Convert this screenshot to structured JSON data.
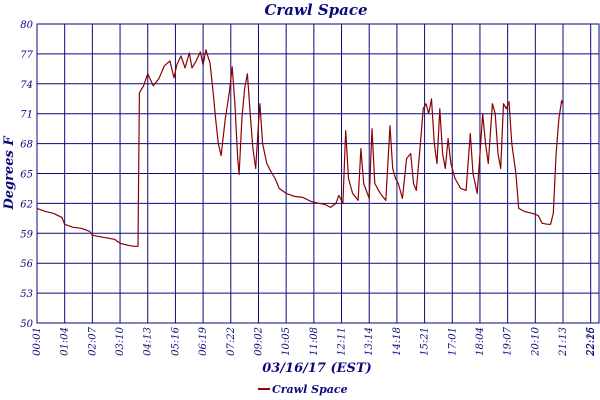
{
  "chart_data": {
    "type": "line",
    "title": "Crawl Space",
    "xlabel": "03/16/17 (EST)",
    "ylabel": "Degrees F",
    "ylim": [
      50,
      80
    ],
    "yticks": [
      "50",
      "53",
      "56",
      "59",
      "62",
      "65",
      "68",
      "71",
      "74",
      "77",
      "80"
    ],
    "xticks": [
      "00:01",
      "01:04",
      "02:07",
      "03:10",
      "04:13",
      "05:16",
      "06:19",
      "07:22",
      "09:02",
      "10:05",
      "11:08",
      "12:11",
      "13:14",
      "14:18",
      "15:21",
      "17:01",
      "18:04",
      "19:07",
      "20:10",
      "21:13",
      "22:16",
      "22:25"
    ],
    "grid": true,
    "legend_position": "bottom-left",
    "colors": {
      "series": "#8b0000",
      "grid": "#0a0a7a",
      "text": "#0a0a7a"
    },
    "series": [
      {
        "name": "Crawl Space",
        "points": [
          [
            0,
            61.5
          ],
          [
            0.3,
            61.2
          ],
          [
            0.6,
            61.0
          ],
          [
            0.9,
            60.6
          ],
          [
            1.0,
            59.9
          ],
          [
            1.3,
            59.6
          ],
          [
            1.6,
            59.5
          ],
          [
            1.9,
            59.2
          ],
          [
            2.0,
            58.8
          ],
          [
            2.4,
            58.6
          ],
          [
            2.8,
            58.4
          ],
          [
            3.0,
            58.0
          ],
          [
            3.3,
            57.8
          ],
          [
            3.5,
            57.7
          ],
          [
            3.65,
            57.7
          ],
          [
            3.7,
            73.1
          ],
          [
            3.85,
            73.8
          ],
          [
            4.0,
            75.0
          ],
          [
            4.2,
            73.8
          ],
          [
            4.4,
            74.5
          ],
          [
            4.6,
            75.8
          ],
          [
            4.8,
            76.3
          ],
          [
            4.95,
            74.6
          ],
          [
            5.05,
            75.9
          ],
          [
            5.2,
            76.8
          ],
          [
            5.35,
            75.6
          ],
          [
            5.5,
            77.1
          ],
          [
            5.6,
            75.6
          ],
          [
            5.75,
            76.3
          ],
          [
            5.9,
            77.2
          ],
          [
            6.0,
            75.9
          ],
          [
            6.1,
            77.4
          ],
          [
            6.25,
            76.1
          ],
          [
            6.35,
            73.5
          ],
          [
            6.45,
            70.5
          ],
          [
            6.55,
            68.0
          ],
          [
            6.65,
            66.8
          ],
          [
            6.8,
            70.5
          ],
          [
            6.95,
            73.2
          ],
          [
            7.05,
            75.7
          ],
          [
            7.15,
            72.0
          ],
          [
            7.25,
            66.5
          ],
          [
            7.3,
            64.9
          ],
          [
            7.4,
            70.5
          ],
          [
            7.5,
            73.5
          ],
          [
            7.6,
            75.0
          ],
          [
            7.7,
            71.0
          ],
          [
            7.8,
            67.5
          ],
          [
            7.9,
            65.5
          ],
          [
            8.0,
            70.0
          ],
          [
            8.05,
            72.0
          ],
          [
            8.15,
            68.0
          ],
          [
            8.3,
            66.0
          ],
          [
            8.45,
            65.2
          ],
          [
            8.6,
            64.5
          ],
          [
            8.75,
            63.5
          ],
          [
            9.0,
            63.0
          ],
          [
            9.3,
            62.7
          ],
          [
            9.6,
            62.6
          ],
          [
            9.9,
            62.2
          ],
          [
            10.2,
            62.0
          ],
          [
            10.4,
            61.9
          ],
          [
            10.6,
            61.6
          ],
          [
            10.8,
            62.0
          ],
          [
            10.9,
            62.8
          ],
          [
            11.05,
            62.0
          ],
          [
            11.15,
            69.3
          ],
          [
            11.25,
            64.5
          ],
          [
            11.4,
            63.0
          ],
          [
            11.6,
            62.3
          ],
          [
            11.7,
            67.5
          ],
          [
            11.8,
            64.0
          ],
          [
            12.0,
            62.5
          ],
          [
            12.1,
            69.5
          ],
          [
            12.2,
            64.0
          ],
          [
            12.4,
            63.0
          ],
          [
            12.6,
            62.3
          ],
          [
            12.75,
            69.8
          ],
          [
            12.85,
            65.5
          ],
          [
            12.95,
            64.5
          ],
          [
            13.05,
            64.0
          ],
          [
            13.2,
            62.5
          ],
          [
            13.35,
            66.5
          ],
          [
            13.5,
            67.0
          ],
          [
            13.6,
            64.0
          ],
          [
            13.7,
            63.3
          ],
          [
            13.85,
            68.0
          ],
          [
            13.95,
            71.5
          ],
          [
            14.05,
            72.0
          ],
          [
            14.15,
            71.0
          ],
          [
            14.25,
            72.5
          ],
          [
            14.35,
            68.0
          ],
          [
            14.45,
            66.0
          ],
          [
            14.55,
            71.5
          ],
          [
            14.65,
            67.0
          ],
          [
            14.75,
            65.5
          ],
          [
            14.85,
            68.5
          ],
          [
            14.95,
            66.0
          ],
          [
            15.1,
            64.5
          ],
          [
            15.3,
            63.5
          ],
          [
            15.5,
            63.3
          ],
          [
            15.65,
            69.0
          ],
          [
            15.75,
            65.0
          ],
          [
            15.9,
            63.0
          ],
          [
            16.0,
            67.0
          ],
          [
            16.1,
            71.0
          ],
          [
            16.2,
            68.0
          ],
          [
            16.3,
            66.0
          ],
          [
            16.45,
            72.0
          ],
          [
            16.55,
            71.0
          ],
          [
            16.65,
            67.0
          ],
          [
            16.75,
            65.5
          ],
          [
            16.85,
            72.0
          ],
          [
            16.95,
            71.5
          ],
          [
            17.05,
            72.2
          ],
          [
            17.15,
            68.0
          ],
          [
            17.3,
            65.0
          ],
          [
            17.4,
            61.5
          ],
          [
            17.6,
            61.2
          ],
          [
            17.9,
            61.0
          ],
          [
            18.1,
            60.8
          ],
          [
            18.25,
            60.0
          ],
          [
            18.45,
            59.9
          ],
          [
            18.55,
            59.9
          ],
          [
            18.65,
            61.0
          ],
          [
            18.75,
            67.0
          ],
          [
            18.85,
            70.5
          ],
          [
            18.95,
            72.3
          ],
          [
            19.0,
            72.0
          ]
        ]
      }
    ]
  }
}
